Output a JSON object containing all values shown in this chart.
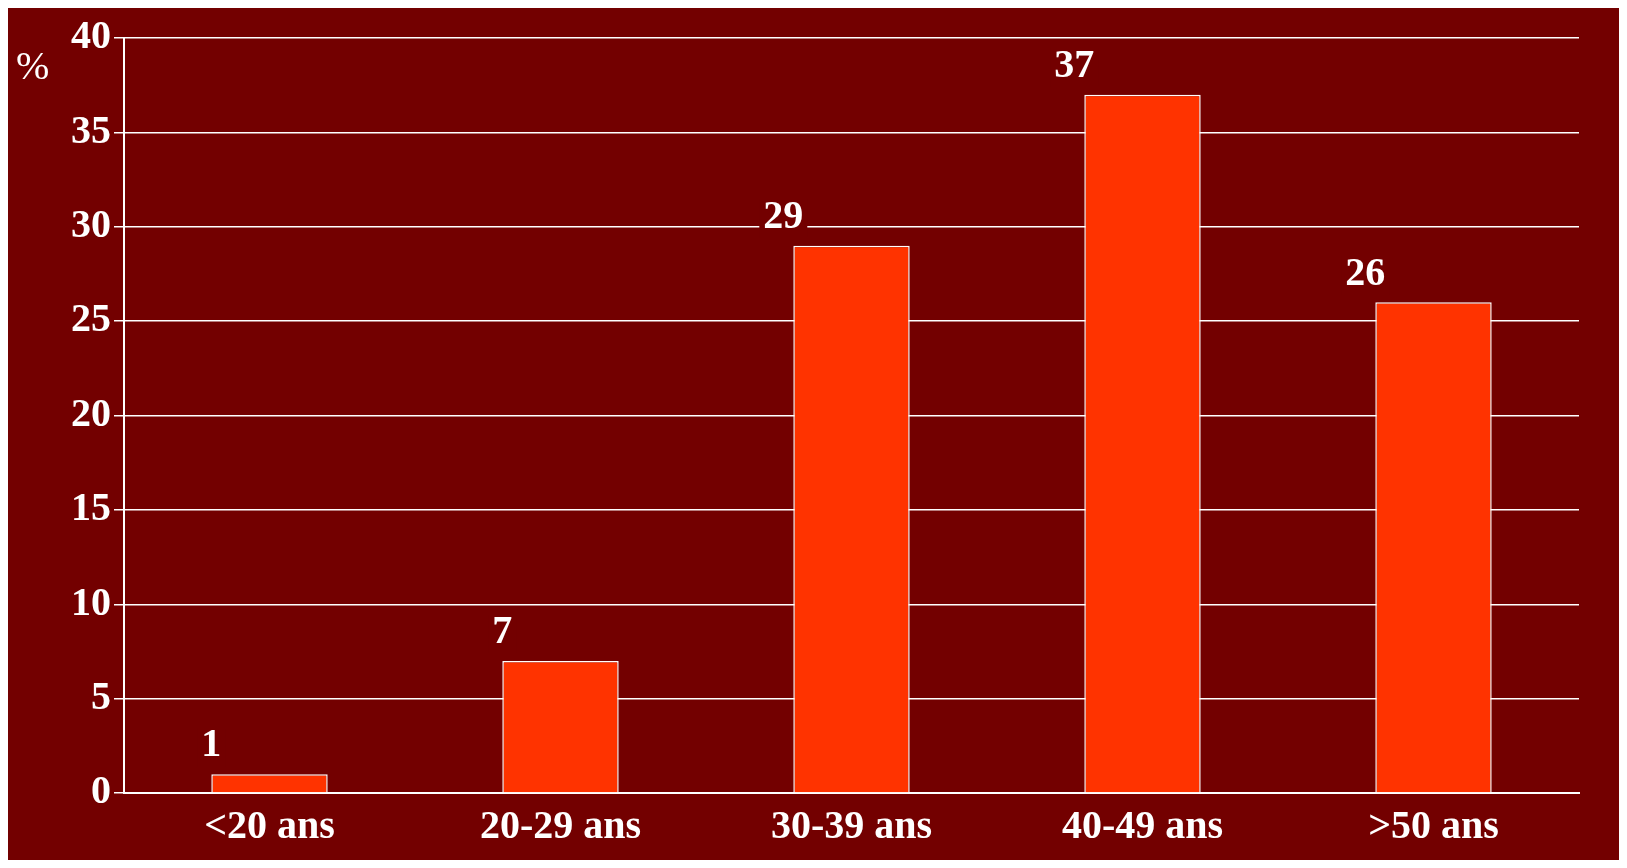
{
  "chart_data": {
    "type": "bar",
    "ylabel": "%",
    "categories": [
      "<20 ans",
      "20-29 ans",
      "30-39 ans",
      "40-49 ans",
      ">50 ans"
    ],
    "values": [
      1,
      7,
      29,
      37,
      26
    ],
    "color": "#ff3300",
    "ylim": [
      0,
      40
    ],
    "yticks": [
      0,
      5,
      10,
      15,
      20,
      25,
      30,
      35,
      40
    ],
    "grid": "y",
    "data_labels": true
  }
}
